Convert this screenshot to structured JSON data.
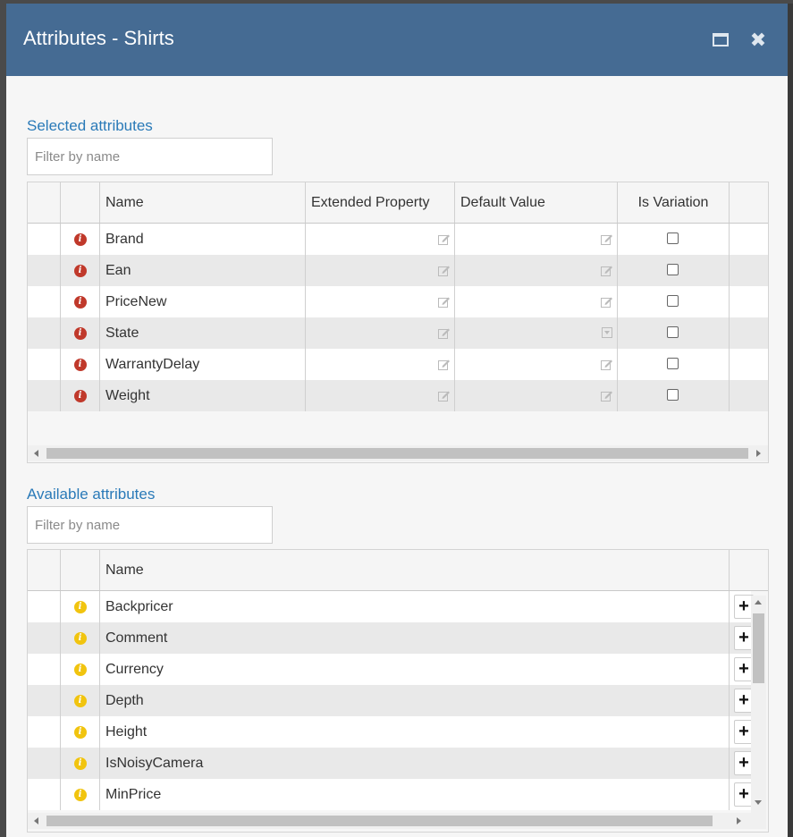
{
  "dialog": {
    "title": "Attributes - Shirts",
    "maximize_icon": "maximize-icon",
    "close_icon": "close-icon",
    "close_glyph": "✖"
  },
  "selected": {
    "section_title": "Selected attributes",
    "filter_placeholder": "Filter by name",
    "columns": [
      "",
      "",
      "Name",
      "Extended Property",
      "Default Value",
      "Is Variation",
      ""
    ],
    "rows": [
      {
        "name": "Brand",
        "default_icon": "edit-icon",
        "is_variation": false
      },
      {
        "name": "Ean",
        "default_icon": "edit-icon",
        "is_variation": false
      },
      {
        "name": "PriceNew",
        "default_icon": "edit-icon",
        "is_variation": false
      },
      {
        "name": "State",
        "default_icon": "dropdown-icon",
        "is_variation": false
      },
      {
        "name": "WarrantyDelay",
        "default_icon": "edit-icon",
        "is_variation": false
      },
      {
        "name": "Weight",
        "default_icon": "edit-icon",
        "is_variation": false
      }
    ]
  },
  "available": {
    "section_title": "Available attributes",
    "filter_placeholder": "Filter by name",
    "columns": [
      "",
      "",
      "Name",
      ""
    ],
    "add_glyph": "+",
    "rows": [
      {
        "name": "Backpricer"
      },
      {
        "name": "Comment"
      },
      {
        "name": "Currency"
      },
      {
        "name": "Depth"
      },
      {
        "name": "Height"
      },
      {
        "name": "IsNoisyCamera"
      },
      {
        "name": "MinPrice"
      }
    ]
  },
  "colors": {
    "titlebar": "#456b93",
    "section_title": "#2a7ab8",
    "info_red": "#c0392b",
    "info_yellow": "#f1c40f"
  }
}
